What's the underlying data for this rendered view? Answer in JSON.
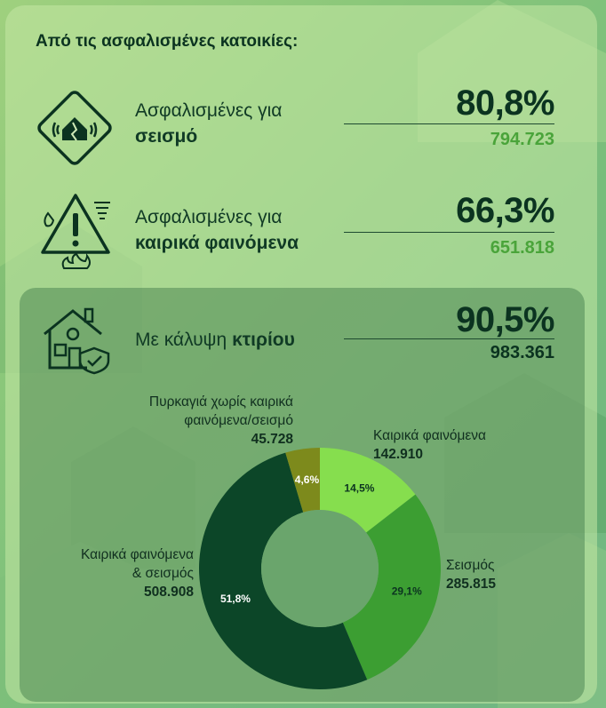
{
  "heading": "Από τις ασφαλισμένες κατοικίες:",
  "stats": [
    {
      "label_pre": "Ασφαλισμένες για",
      "label_bold": "σεισμό",
      "percent": "80,8%",
      "count": "794.723"
    },
    {
      "label_pre": "Ασφαλισμένες για",
      "label_bold": "καιρικά φαινόμενα",
      "percent": "66,3%",
      "count": "651.818"
    },
    {
      "label_pre": "Με κάλυψη",
      "label_bold": "κτιρίου",
      "percent": "90,5%",
      "count": "983.361"
    }
  ],
  "colors": {
    "accent_green": "#4aa43a",
    "dark_green": "#0b3320",
    "slice_light": "#86de4e",
    "slice_mid": "#3c9e32",
    "slice_dark": "#0c4628",
    "slice_olive": "#7d8a1c"
  },
  "icons": [
    "house-earthquake-icon",
    "warning-weather-icon",
    "house-shield-icon"
  ],
  "chart_data": {
    "type": "pie",
    "donut": true,
    "slices": [
      {
        "name": "Καιρικά φαινόμενα",
        "value": 142910,
        "value_label": "142.910",
        "percent": 14.5,
        "percent_label": "14,5%",
        "color": "#86de4e"
      },
      {
        "name": "Σεισμός",
        "value": 285815,
        "value_label": "285.815",
        "percent": 29.1,
        "percent_label": "29,1%",
        "color": "#3c9e32"
      },
      {
        "name": "Καιρικά φαινόμενα & σεισμός",
        "value": 508908,
        "value_label": "508.908",
        "percent": 51.8,
        "percent_label": "51,8%",
        "color": "#0c4628"
      },
      {
        "name": "Πυρκαγιά χωρίς καιρικά φαινόμενα/σεισμό",
        "value": 45728,
        "value_label": "45.728",
        "percent": 4.6,
        "percent_label": "4,6%",
        "color": "#7d8a1c"
      }
    ]
  },
  "annotations": {
    "weather_line1": "Καιρικά φαινόμενα",
    "quake_line1": "Σεισμός",
    "both_line1": "Καιρικά φαινόμενα",
    "both_line2": "& σεισμός",
    "fire_line1": "Πυρκαγιά χωρίς καιρικά",
    "fire_line2": "φαινόμενα/σεισμό"
  }
}
